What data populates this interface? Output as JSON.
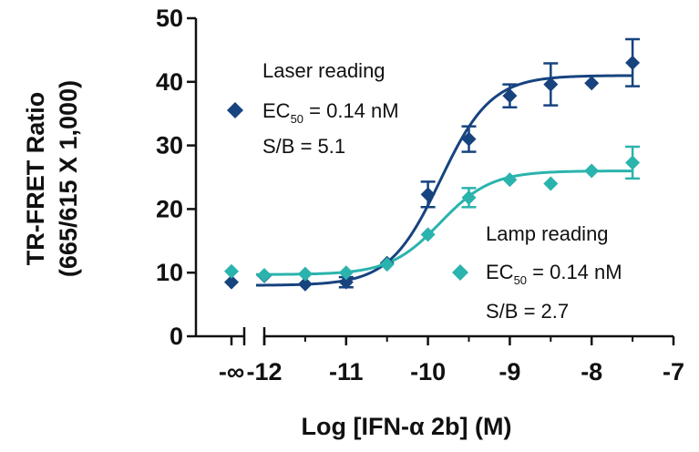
{
  "chart_data": {
    "type": "scatter",
    "xlabel": "Log [IFN-α 2b] (M)",
    "ylabel_line1": "TR-FRET Ratio",
    "ylabel_line2": "(665/615 X 1,000)",
    "ylim": [
      0,
      50
    ],
    "xlim": [
      -12.0,
      -7.0
    ],
    "axis_break": true,
    "y_ticks": [
      {
        "value": 0,
        "label": "0"
      },
      {
        "value": 10,
        "label": "10"
      },
      {
        "value": 20,
        "label": "20"
      },
      {
        "value": 30,
        "label": "30"
      },
      {
        "value": 40,
        "label": "40"
      },
      {
        "value": 50,
        "label": "50"
      }
    ],
    "x_ticks": [
      {
        "value": "-inf",
        "label": "-∞"
      },
      {
        "value": -12,
        "label": "-12"
      },
      {
        "value": -11,
        "label": "-11"
      },
      {
        "value": -10,
        "label": "-10"
      },
      {
        "value": -9,
        "label": "-9"
      },
      {
        "value": -8,
        "label": "-8"
      },
      {
        "value": -7,
        "label": "-7"
      }
    ],
    "series": [
      {
        "name": "Laser reading",
        "color": "#17437f",
        "ec50_label": "EC",
        "ec50_sub": "50",
        "ec50_value": " = 0.14 nM",
        "sb": "S/B = 5.1",
        "curve": {
          "bottom": 8,
          "top": 41,
          "log_ec50": -9.85,
          "hill": 1.4
        },
        "points": [
          {
            "x": "-inf",
            "y": 8.5,
            "err": 0
          },
          {
            "x": -12.0,
            "y": 9.5,
            "err": 0
          },
          {
            "x": -11.5,
            "y": 8.2,
            "err": 0
          },
          {
            "x": -11.0,
            "y": 8.5,
            "err": 0.8
          },
          {
            "x": -10.5,
            "y": 11.5,
            "err": 0
          },
          {
            "x": -10.0,
            "y": 22.3,
            "err": 2.0
          },
          {
            "x": -9.5,
            "y": 31.0,
            "err": 2.0
          },
          {
            "x": -9.0,
            "y": 37.8,
            "err": 1.8
          },
          {
            "x": -8.5,
            "y": 39.6,
            "err": 3.3
          },
          {
            "x": -8.0,
            "y": 39.8,
            "err": 0
          },
          {
            "x": -7.5,
            "y": 43.0,
            "err": 3.7
          }
        ]
      },
      {
        "name": "Lamp reading",
        "color": "#2bb3ad",
        "ec50_label": "EC",
        "ec50_sub": "50",
        "ec50_value": " = 0.14 nM",
        "sb": "S/B = 2.7",
        "curve": {
          "bottom": 9.7,
          "top": 26,
          "log_ec50": -9.85,
          "hill": 1.4
        },
        "points": [
          {
            "x": "-inf",
            "y": 10.2,
            "err": 0
          },
          {
            "x": -12.0,
            "y": 9.6,
            "err": 0
          },
          {
            "x": -11.5,
            "y": 9.8,
            "err": 0
          },
          {
            "x": -11.0,
            "y": 10.0,
            "err": 0
          },
          {
            "x": -10.5,
            "y": 11.3,
            "err": 0
          },
          {
            "x": -10.0,
            "y": 16.0,
            "err": 0
          },
          {
            "x": -9.5,
            "y": 21.8,
            "err": 1.5
          },
          {
            "x": -9.0,
            "y": 24.6,
            "err": 0
          },
          {
            "x": -8.5,
            "y": 24.0,
            "err": 0
          },
          {
            "x": -8.0,
            "y": 26.0,
            "err": 0
          },
          {
            "x": -7.5,
            "y": 27.3,
            "err": 2.5
          }
        ]
      }
    ]
  }
}
